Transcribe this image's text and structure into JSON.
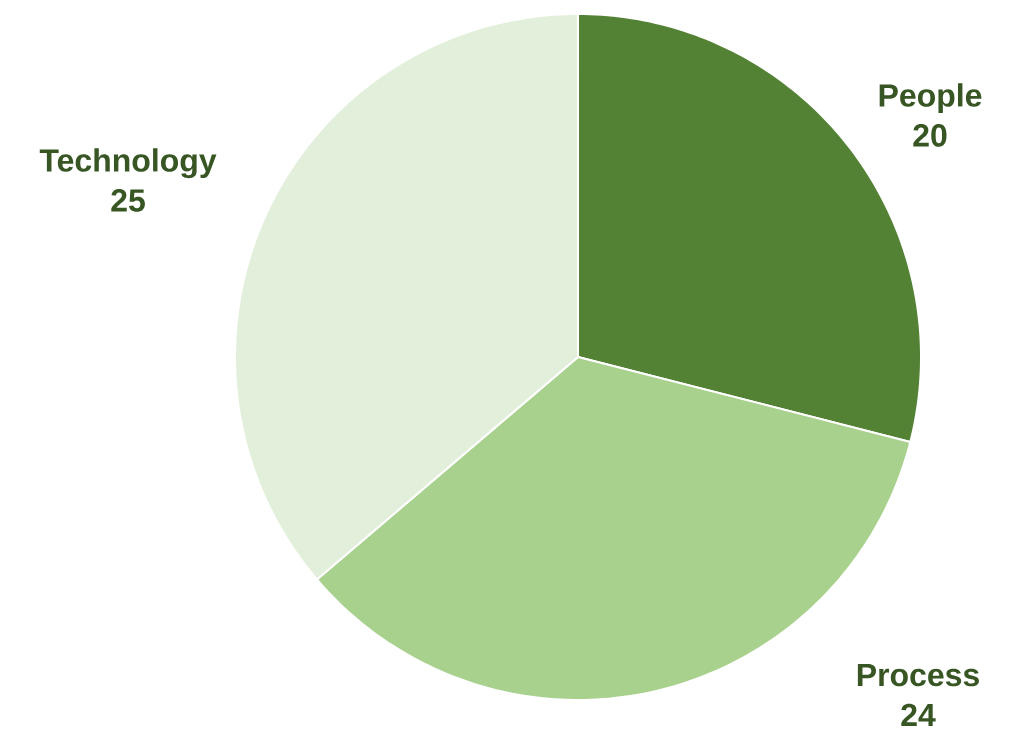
{
  "chart_data": {
    "type": "pie",
    "categories": [
      "People",
      "Process",
      "Technology"
    ],
    "values": [
      20,
      24,
      25
    ],
    "value_labels": [
      "20",
      "24",
      "25"
    ],
    "colors": [
      "#548235",
      "#a9d18e",
      "#e2efda"
    ]
  }
}
